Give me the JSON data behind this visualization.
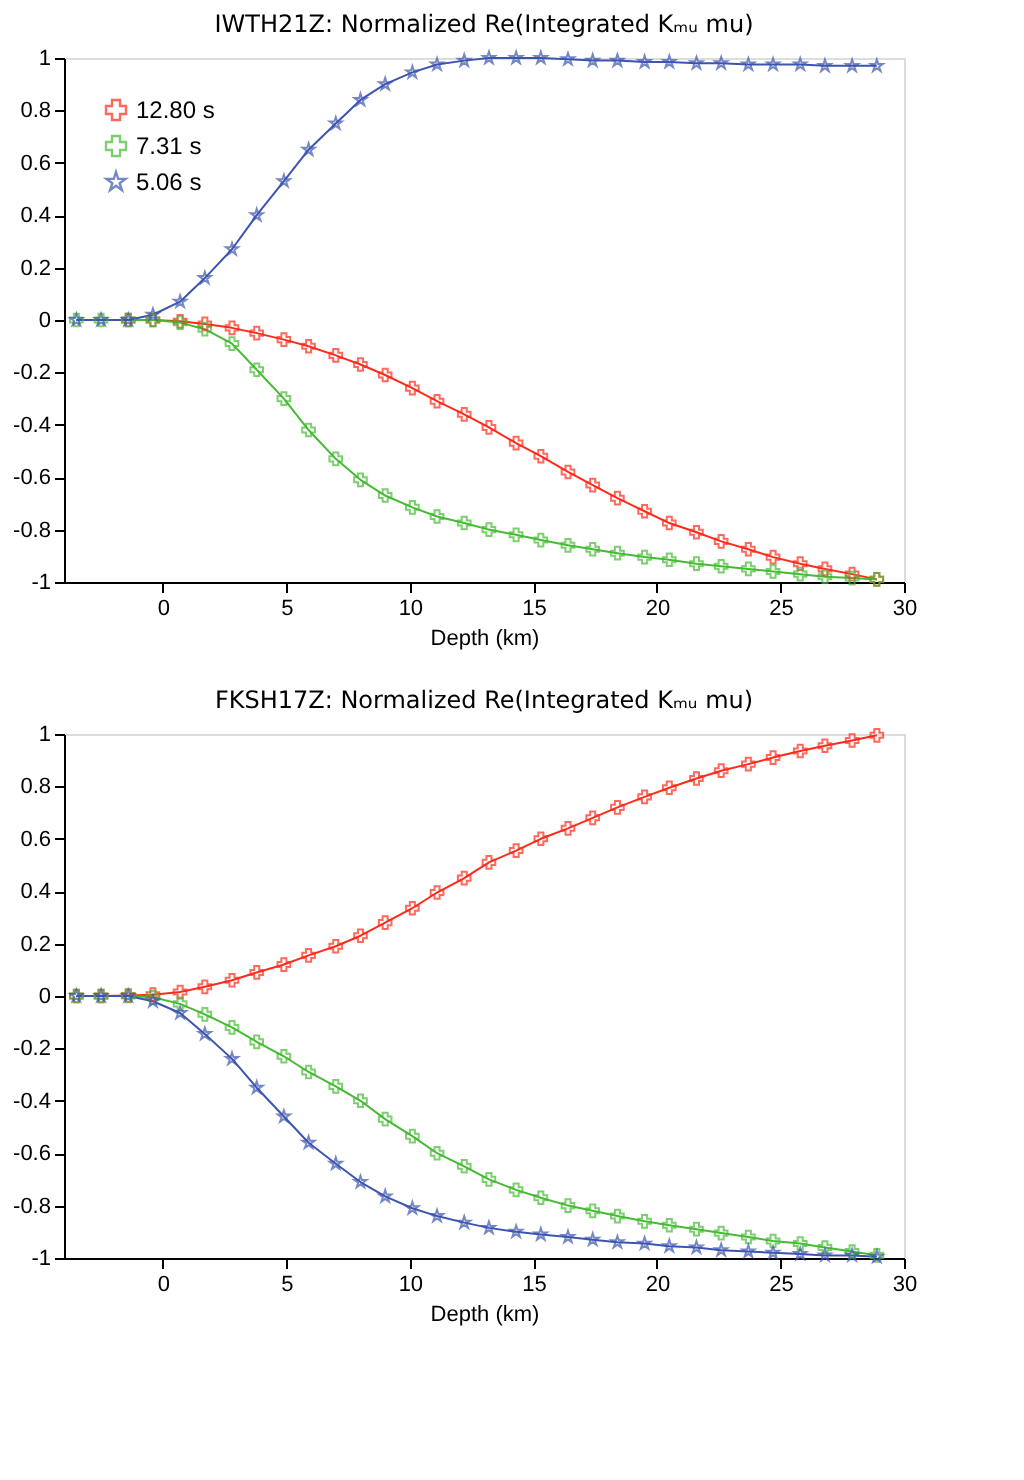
{
  "chart_data": [
    {
      "type": "line",
      "title": "IWTH21Z: Normalized Re(Integrated Kₘᵤ mu)",
      "xlabel": "Depth (km)",
      "xlim": [
        -4,
        30
      ],
      "xticks": [
        0,
        5,
        10,
        15,
        20,
        25,
        30
      ],
      "ylim": [
        -1,
        1
      ],
      "yticks": [
        -1,
        -0.8,
        -0.6,
        -0.4,
        -0.2,
        0,
        0.2,
        0.4,
        0.6,
        0.8,
        1
      ],
      "grid": false,
      "legend": "top left",
      "line_style": "solid",
      "x": [
        -3.5,
        -2.5,
        -1.4,
        -0.4,
        0.7,
        1.7,
        2.8,
        3.8,
        4.9,
        5.9,
        7.0,
        8.0,
        9.0,
        10.1,
        11.1,
        12.2,
        13.2,
        14.3,
        15.3,
        16.4,
        17.4,
        18.4,
        19.5,
        20.5,
        21.6,
        22.6,
        23.7,
        24.7,
        25.8,
        26.8,
        27.9,
        28.9
      ],
      "series": [
        {
          "name": "12.80 s",
          "color": "#ff2a1a",
          "marker": "cross",
          "values": [
            null,
            null,
            0,
            0,
            -0.005,
            -0.015,
            -0.03,
            -0.05,
            -0.075,
            -0.1,
            -0.135,
            -0.17,
            -0.21,
            -0.26,
            -0.31,
            -0.36,
            -0.41,
            -0.47,
            -0.52,
            -0.58,
            -0.63,
            -0.68,
            -0.73,
            -0.775,
            -0.81,
            -0.845,
            -0.875,
            -0.905,
            -0.93,
            -0.95,
            -0.97,
            -0.99
          ]
        },
        {
          "name": "7.31 s",
          "color": "#44bb33",
          "marker": "cross",
          "values": [
            0,
            0,
            0,
            0,
            -0.01,
            -0.035,
            -0.09,
            -0.19,
            -0.3,
            -0.42,
            -0.53,
            -0.61,
            -0.67,
            -0.715,
            -0.75,
            -0.775,
            -0.8,
            -0.82,
            -0.84,
            -0.86,
            -0.875,
            -0.89,
            -0.905,
            -0.915,
            -0.93,
            -0.94,
            -0.95,
            -0.96,
            -0.97,
            -0.98,
            -0.985,
            -0.99
          ]
        },
        {
          "name": "5.06 s",
          "color": "#3d55b0",
          "marker": "star",
          "values": [
            0,
            0,
            0,
            0.02,
            0.07,
            0.16,
            0.27,
            0.4,
            0.53,
            0.65,
            0.75,
            0.84,
            0.9,
            0.945,
            0.975,
            0.99,
            1.0,
            1.0,
            1.0,
            0.995,
            0.99,
            0.99,
            0.985,
            0.985,
            0.98,
            0.98,
            0.975,
            0.975,
            0.975,
            0.97,
            0.97,
            0.97
          ]
        }
      ]
    },
    {
      "type": "line",
      "title": "FKSH17Z: Normalized Re(Integrated Kₘᵤ mu)",
      "xlabel": "Depth (km)",
      "xlim": [
        -4,
        30
      ],
      "xticks": [
        0,
        5,
        10,
        15,
        20,
        25,
        30
      ],
      "ylim": [
        -1,
        1
      ],
      "yticks": [
        -1,
        -0.8,
        -0.6,
        -0.4,
        -0.2,
        0,
        0.2,
        0.4,
        0.6,
        0.8,
        1
      ],
      "grid": false,
      "legend": "top left",
      "line_style": "solid",
      "x": [
        -3.5,
        -2.5,
        -1.4,
        -0.4,
        0.7,
        1.7,
        2.8,
        3.8,
        4.9,
        5.9,
        7.0,
        8.0,
        9.0,
        10.1,
        11.1,
        12.2,
        13.2,
        14.3,
        15.3,
        16.4,
        17.4,
        18.4,
        19.5,
        20.5,
        21.6,
        22.6,
        23.7,
        24.7,
        25.8,
        26.8,
        27.9,
        28.9
      ],
      "series": [
        {
          "name": "12.80 s",
          "color": "#ff2a1a",
          "marker": "cross",
          "values": [
            0,
            0,
            0.002,
            0.005,
            0.015,
            0.035,
            0.06,
            0.09,
            0.12,
            0.155,
            0.19,
            0.23,
            0.28,
            0.335,
            0.395,
            0.45,
            0.51,
            0.555,
            0.6,
            0.64,
            0.68,
            0.72,
            0.76,
            0.795,
            0.83,
            0.86,
            0.885,
            0.91,
            0.935,
            0.955,
            0.975,
            0.995
          ]
        },
        {
          "name": "7.31 s",
          "color": "#44bb33",
          "marker": "cross",
          "values": [
            0,
            0,
            0,
            -0.005,
            -0.03,
            -0.07,
            -0.12,
            -0.175,
            -0.23,
            -0.29,
            -0.345,
            -0.4,
            -0.47,
            -0.535,
            -0.6,
            -0.65,
            -0.7,
            -0.74,
            -0.77,
            -0.8,
            -0.82,
            -0.84,
            -0.86,
            -0.875,
            -0.89,
            -0.905,
            -0.92,
            -0.935,
            -0.945,
            -0.96,
            -0.975,
            -0.99
          ]
        },
        {
          "name": "5.06 s",
          "color": "#3d55b0",
          "marker": "star",
          "values": [
            0,
            0,
            0,
            -0.02,
            -0.065,
            -0.145,
            -0.24,
            -0.35,
            -0.46,
            -0.56,
            -0.64,
            -0.71,
            -0.765,
            -0.81,
            -0.84,
            -0.865,
            -0.885,
            -0.9,
            -0.91,
            -0.92,
            -0.93,
            -0.94,
            -0.945,
            -0.955,
            -0.96,
            -0.97,
            -0.975,
            -0.98,
            -0.985,
            -0.99,
            -0.99,
            -0.995
          ]
        }
      ]
    }
  ]
}
